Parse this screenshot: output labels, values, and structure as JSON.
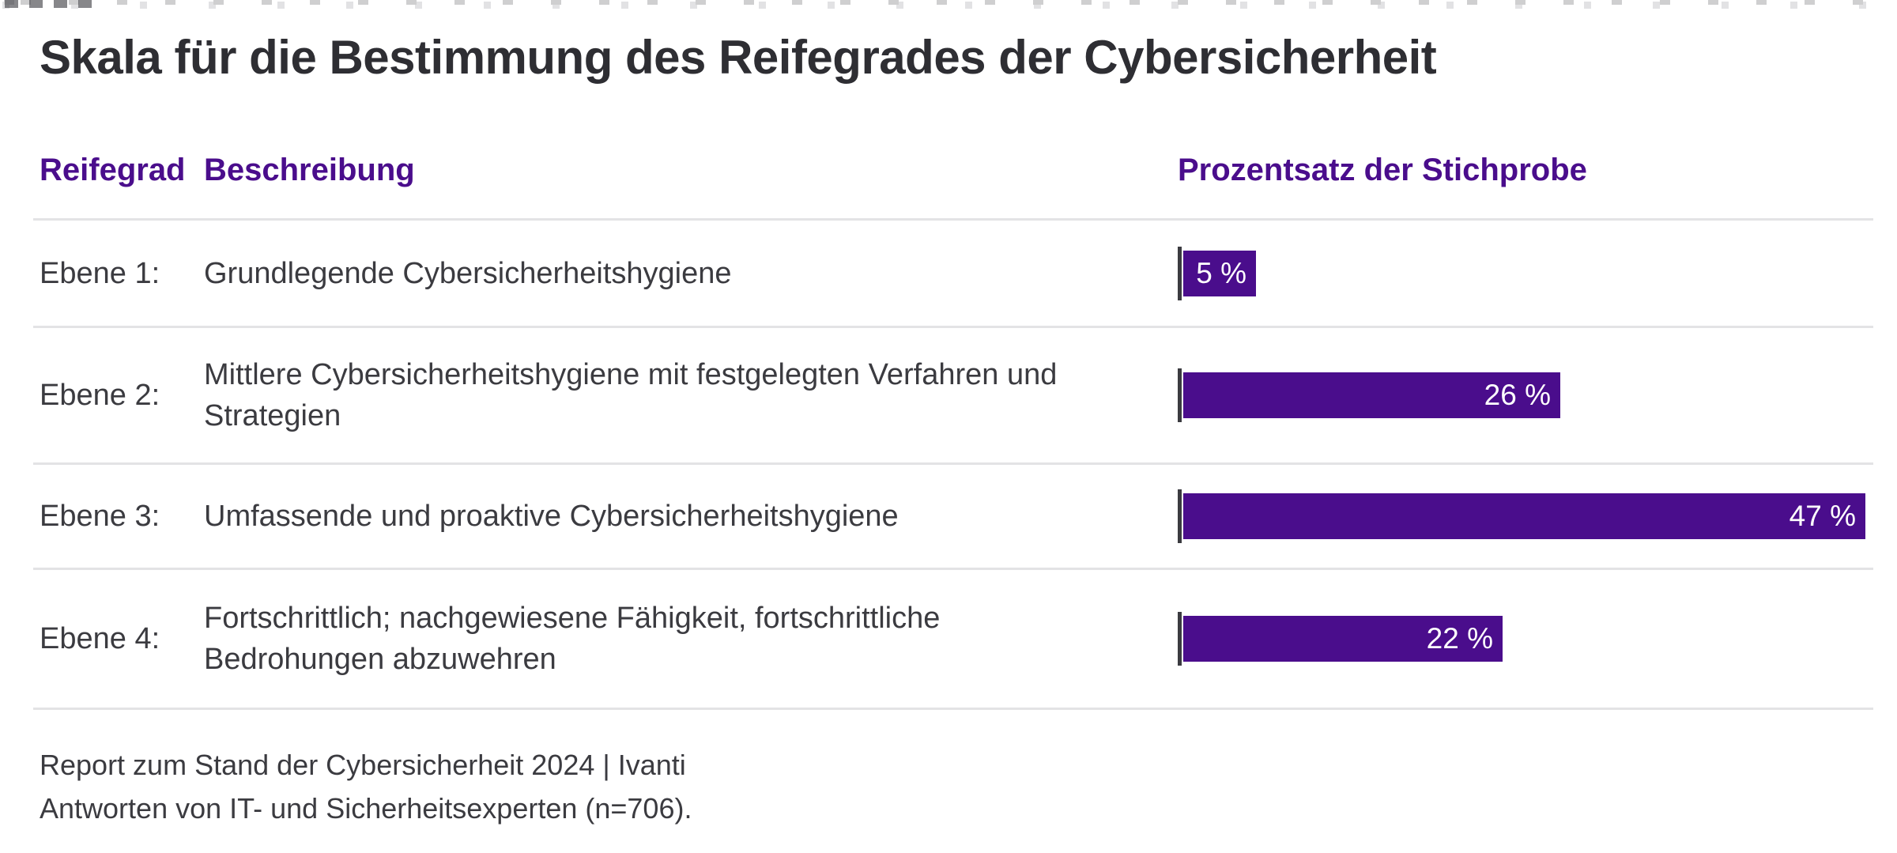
{
  "title": "Skala für die Bestimmung des Reifegrades der Cybersicherheit",
  "table": {
    "columns": {
      "maturity": "Reifegrad",
      "description": "Beschreibung",
      "percentage": "Prozentsatz der Stichprobe"
    },
    "rows": [
      {
        "level": "Ebene 1:",
        "description": "Grundlegende Cybersicherheitshygiene",
        "percent_label": "5 %"
      },
      {
        "level": "Ebene 2:",
        "description": "Mittlere Cybersicherheitshygiene mit festgelegten Verfahren und\nStrategien",
        "percent_label": "26 %"
      },
      {
        "level": "Ebene 3:",
        "description": "Umfassende und proaktive Cybersicherheitshygiene",
        "percent_label": "47 %"
      },
      {
        "level": "Ebene 4:",
        "description": "Fortschrittlich; nachgewiesene Fähigkeit, fortschrittliche\nBedrohungen abzuwehren",
        "percent_label": "22 %"
      }
    ]
  },
  "footer": {
    "line1": "Report zum Stand der Cybersicherheit 2024 | Ivanti",
    "line2": "Antworten von IT- und Sicherheitsexperten (n=706)."
  },
  "colors": {
    "accent_purple": "#4A0D8C",
    "title_text": "#2E2E33",
    "body_text": "#3B3B40",
    "divider": "#E3E3E5",
    "bar_label_text": "#FFFFFF",
    "axis_tick": "#3B3B40",
    "background": "#FFFFFF"
  },
  "chart_data": {
    "type": "bar",
    "orientation": "horizontal",
    "title": "Skala für die Bestimmung des Reifegrades der Cybersicherheit",
    "value_axis_label": "Prozentsatz der Stichprobe",
    "categories": [
      "Ebene 1: Grundlegende Cybersicherheitshygiene",
      "Ebene 2: Mittlere Cybersicherheitshygiene mit festgelegten Verfahren und Strategien",
      "Ebene 3: Umfassende und proaktive Cybersicherheitshygiene",
      "Ebene 4: Fortschrittlich; nachgewiesene Fähigkeit, fortschrittliche Bedrohungen abzuwehren"
    ],
    "values": [
      5,
      26,
      47,
      22
    ],
    "unit": "%",
    "data_labels": [
      "5 %",
      "26 %",
      "47 %",
      "22 %"
    ],
    "xlim": [
      0,
      47
    ],
    "grid": false,
    "legend": false,
    "bar_color": "#4A0D8C",
    "source_line1": "Report zum Stand der Cybersicherheit 2024 | Ivanti",
    "source_line2": "Antworten von IT- und Sicherheitsexperten (n=706)."
  }
}
